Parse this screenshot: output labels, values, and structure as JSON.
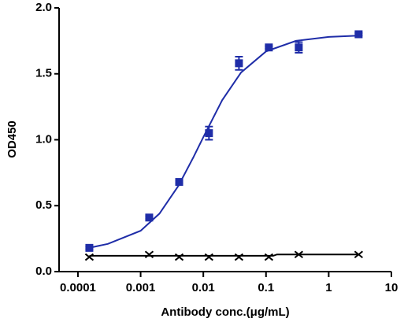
{
  "chart_data": {
    "type": "scatter",
    "x_label": "Antibody conc.(μg/mL)",
    "y_label": "OD450",
    "xscale": "log",
    "xlim": [
      5e-05,
      10
    ],
    "xticks": [
      0.0001,
      0.001,
      0.01,
      0.1,
      1,
      10
    ],
    "ylim": [
      0,
      2
    ],
    "yticks": [
      {
        "value": 0,
        "label": "0.0"
      },
      {
        "value": 0.5,
        "label": "0.5"
      },
      {
        "value": 1,
        "label": "1.0"
      },
      {
        "value": 1.5,
        "label": "1.5"
      },
      {
        "value": 2,
        "label": "2.0"
      }
    ],
    "series": [
      {
        "color": "#1f2da8",
        "marker": "square",
        "x": [
          0.000152,
          0.00137,
          0.00412,
          0.0123,
          0.037,
          0.111,
          0.333,
          3
        ],
        "values": [
          0.18,
          0.41,
          0.68,
          1.05,
          1.58,
          1.7,
          1.7,
          1.8
        ],
        "errors": [
          0.01,
          0.01,
          0.01,
          0.05,
          0.05,
          0.01,
          0.04,
          0.01
        ],
        "curve_x": [
          0.00015,
          0.0003,
          0.001,
          0.002,
          0.004,
          0.007,
          0.01,
          0.02,
          0.04,
          0.1,
          0.3,
          1,
          3
        ],
        "curve_y": [
          0.18,
          0.21,
          0.31,
          0.44,
          0.65,
          0.87,
          1.02,
          1.3,
          1.51,
          1.67,
          1.75,
          1.78,
          1.79
        ]
      },
      {
        "color": "#000000",
        "marker": "x",
        "x": [
          0.000152,
          0.00137,
          0.00412,
          0.0123,
          0.037,
          0.111,
          0.333,
          3
        ],
        "values": [
          0.11,
          0.13,
          0.11,
          0.11,
          0.11,
          0.11,
          0.13,
          0.13
        ],
        "curve_x": [
          0.000152,
          0.13,
          0.15,
          3
        ],
        "curve_y": [
          0.12,
          0.12,
          0.13,
          0.13
        ]
      }
    ]
  }
}
